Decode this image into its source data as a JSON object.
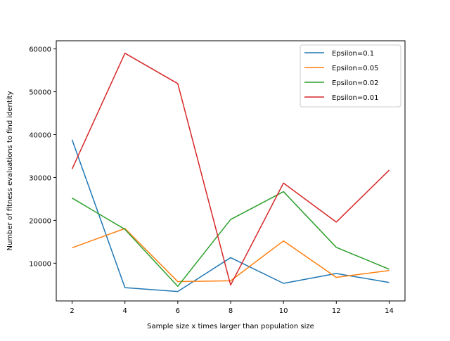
{
  "chart_data": {
    "type": "line",
    "title": "",
    "xlabel": "Sample size x times larger than population size",
    "ylabel": "Number of fitness evaluations to find identity",
    "x": [
      2,
      4,
      6,
      8,
      10,
      12,
      14
    ],
    "xticks": [
      "2",
      "4",
      "6",
      "8",
      "10",
      "12",
      "14"
    ],
    "yticks": [
      "10000",
      "20000",
      "30000",
      "40000",
      "50000",
      "60000"
    ],
    "ytick_values": [
      10000,
      20000,
      30000,
      40000,
      50000,
      60000
    ],
    "xlim": [
      1.4,
      14.6
    ],
    "ylim": [
      1200,
      61900
    ],
    "grid": false,
    "legend_position": "upper right",
    "series": [
      {
        "name": "Epsilon=0.1",
        "color": "#1f77b4",
        "values": [
          38800,
          4300,
          3400,
          11300,
          5300,
          7600,
          5500
        ]
      },
      {
        "name": "Epsilon=0.05",
        "color": "#ff7f0e",
        "values": [
          13600,
          18100,
          5700,
          5900,
          15200,
          6700,
          8300
        ]
      },
      {
        "name": "Epsilon=0.02",
        "color": "#2ca02c",
        "values": [
          25200,
          17900,
          4600,
          20200,
          26700,
          13700,
          8600
        ]
      },
      {
        "name": "Epsilon=0.01",
        "color": "#d62728",
        "values": [
          32000,
          59000,
          51900,
          4900,
          28700,
          19600,
          31700
        ]
      }
    ]
  }
}
